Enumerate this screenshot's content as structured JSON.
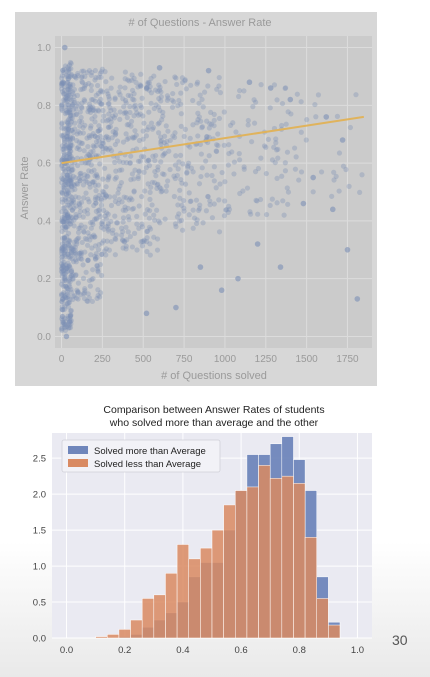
{
  "page_number": "30",
  "chart_data": [
    {
      "type": "scatter",
      "title": "# of Questions - Answer Rate",
      "xlabel": "# of Questions solved",
      "ylabel": "Answer Rate",
      "xlim": [
        -40,
        1900
      ],
      "ylim": [
        -0.04,
        1.04
      ],
      "xticks": [
        0,
        250,
        500,
        750,
        1000,
        1250,
        1500,
        1750
      ],
      "xtick_labels": [
        "0",
        "250",
        "500",
        "750",
        "1000",
        "1250",
        "1500",
        "1750"
      ],
      "yticks": [
        0.0,
        0.2,
        0.4,
        0.6,
        0.8,
        1.0
      ],
      "ytick_labels": [
        "0.0",
        "0.2",
        "0.4",
        "0.6",
        "0.8",
        "1.0"
      ],
      "grid": true,
      "point_color": "#7c8fb5",
      "trend_color": "#e0b35c",
      "trend_line": {
        "x": [
          0,
          1850
        ],
        "y": [
          0.6,
          0.76
        ]
      },
      "outliers": [
        {
          "x": 20,
          "y": 1.0
        },
        {
          "x": 1750,
          "y": 0.3
        },
        {
          "x": 1810,
          "y": 0.13
        },
        {
          "x": 1720,
          "y": 0.68
        },
        {
          "x": 1660,
          "y": 0.44
        },
        {
          "x": 1620,
          "y": 0.76
        },
        {
          "x": 1540,
          "y": 0.55
        },
        {
          "x": 1480,
          "y": 0.46
        },
        {
          "x": 1400,
          "y": 0.82
        },
        {
          "x": 1340,
          "y": 0.24
        },
        {
          "x": 1280,
          "y": 0.86
        },
        {
          "x": 1200,
          "y": 0.32
        },
        {
          "x": 1150,
          "y": 0.88
        },
        {
          "x": 1080,
          "y": 0.2
        },
        {
          "x": 980,
          "y": 0.16
        },
        {
          "x": 900,
          "y": 0.92
        },
        {
          "x": 850,
          "y": 0.24
        },
        {
          "x": 700,
          "y": 0.1
        },
        {
          "x": 600,
          "y": 0.93
        },
        {
          "x": 520,
          "y": 0.08
        },
        {
          "x": 30,
          "y": 0.0
        },
        {
          "x": 50,
          "y": 0.05
        }
      ]
    },
    {
      "type": "bar",
      "title": "Comparison between Answer Rates of students\nwho solved more than average and the other",
      "title_lines": [
        "Comparison between Answer Rates of students",
        "who solved more than average and the other"
      ],
      "xlim": [
        -0.05,
        1.05
      ],
      "ylim": [
        0,
        2.85
      ],
      "xticks": [
        0.0,
        0.2,
        0.4,
        0.6,
        0.8,
        1.0
      ],
      "xtick_labels": [
        "0.0",
        "0.2",
        "0.4",
        "0.6",
        "0.8",
        "1.0"
      ],
      "yticks": [
        0.0,
        0.5,
        1.0,
        1.5,
        2.0,
        2.5
      ],
      "ytick_labels": [
        "0.0",
        "0.5",
        "1.0",
        "1.5",
        "2.0",
        "2.5"
      ],
      "grid": true,
      "legend_position": "top-left",
      "bin_edges": [
        0.1,
        0.14,
        0.18,
        0.22,
        0.26,
        0.3,
        0.34,
        0.38,
        0.42,
        0.46,
        0.5,
        0.54,
        0.58,
        0.62,
        0.66,
        0.7,
        0.74,
        0.78,
        0.82,
        0.86,
        0.9,
        0.94
      ],
      "series": [
        {
          "name": "Solved more than Average",
          "color": "#6f86bb",
          "values": [
            0.0,
            0.0,
            0.02,
            0.05,
            0.15,
            0.25,
            0.35,
            0.5,
            0.85,
            1.05,
            1.05,
            1.5,
            2.05,
            2.55,
            2.55,
            2.7,
            2.8,
            2.48,
            2.05,
            0.85,
            0.22
          ]
        },
        {
          "name": "Solved less than Average",
          "color": "#d98a62",
          "values": [
            0.02,
            0.05,
            0.12,
            0.25,
            0.55,
            0.6,
            0.9,
            1.3,
            1.1,
            1.25,
            1.5,
            1.85,
            2.05,
            2.1,
            2.4,
            2.22,
            2.25,
            2.15,
            1.4,
            0.55,
            0.18
          ]
        }
      ]
    }
  ]
}
